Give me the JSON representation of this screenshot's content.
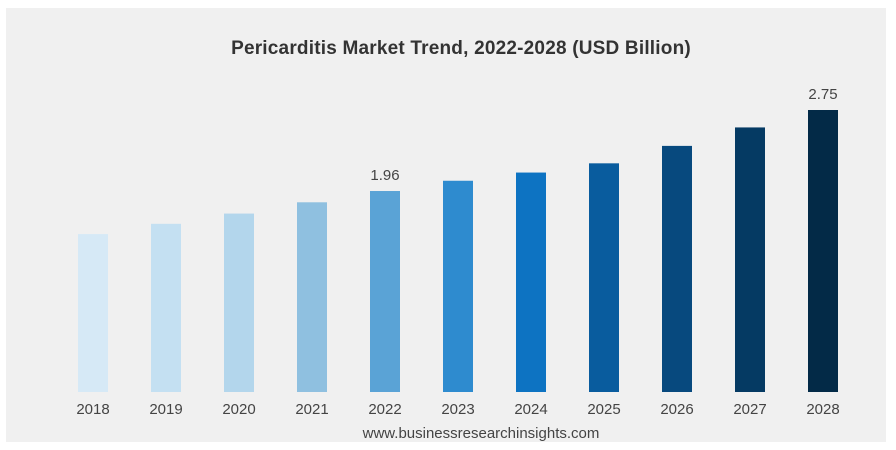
{
  "chart_data": {
    "type": "bar",
    "title": "Pericarditis Market Trend, 2022-2028 (USD Billion)",
    "xlabel": "",
    "ylabel": "",
    "categories": [
      "2018",
      "2019",
      "2020",
      "2021",
      "2022",
      "2023",
      "2024",
      "2025",
      "2026",
      "2027",
      "2028"
    ],
    "values": [
      1.54,
      1.64,
      1.74,
      1.85,
      1.96,
      2.06,
      2.14,
      2.23,
      2.4,
      2.58,
      2.75
    ],
    "data_labels": [
      {
        "index": 4,
        "text": "1.96"
      },
      {
        "index": 10,
        "text": "2.75"
      }
    ],
    "ylim": [
      0,
      2.75
    ],
    "grid": false,
    "legend": "none",
    "colors": [
      "#d6e9f6",
      "#c4e0f2",
      "#b3d6ec",
      "#8fc0e0",
      "#5aa3d6",
      "#2e8bcf",
      "#0d73c2",
      "#095c9e",
      "#07497e",
      "#053a63",
      "#032a47"
    ]
  },
  "source": "www.businessresearchinsights.com"
}
